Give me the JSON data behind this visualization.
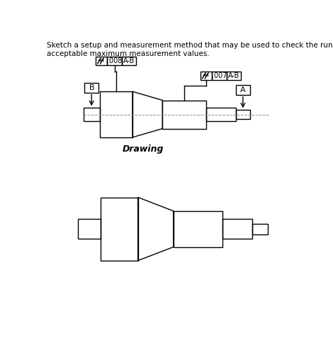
{
  "title_text": "Sketch a setup and measurement method that may be used to check the runout tolerance. Also show the\nacceptable maximum measurement values.",
  "drawing_label": "Drawing",
  "callout1_value": ".008",
  "callout1_datum": "A-B",
  "callout2_value": ".007",
  "callout2_datum": "A-B",
  "datum_A_label": "A",
  "datum_B_label": "B",
  "bg_color": "#ffffff",
  "line_color": "#000000",
  "fontsize_title": 7.5,
  "fontsize_label": 8
}
